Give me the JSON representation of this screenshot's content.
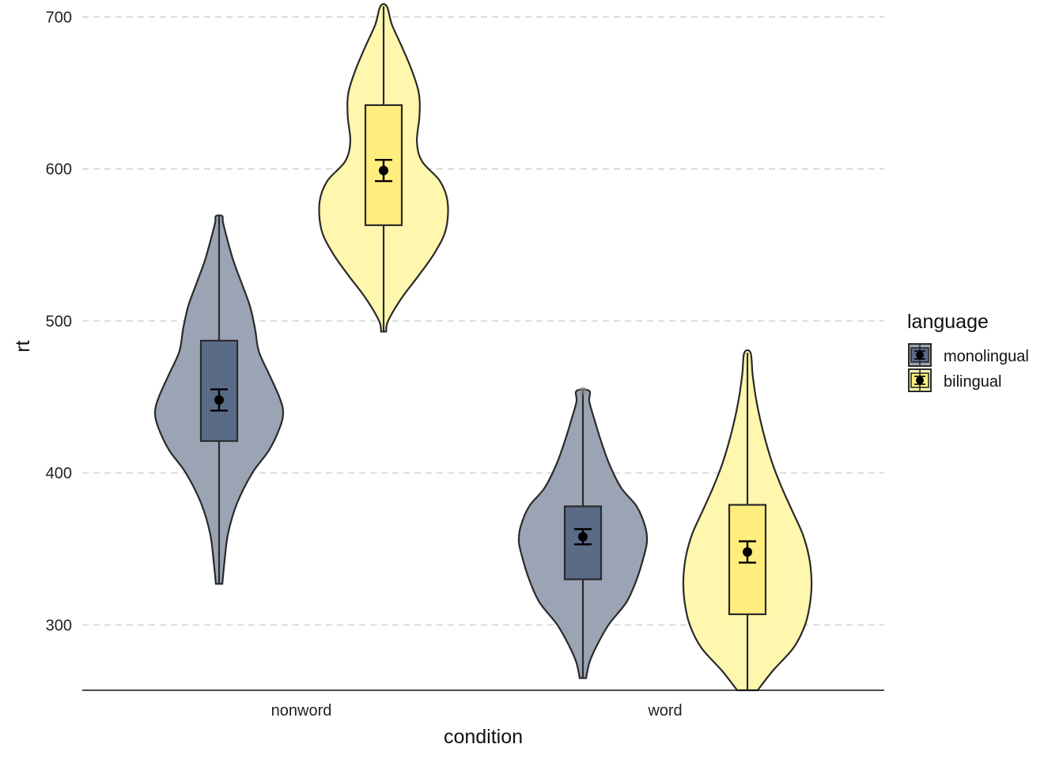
{
  "chart_data": {
    "type": "violin",
    "title": "",
    "xlabel": "condition",
    "ylabel": "rt",
    "ylim": [
      257,
      707
    ],
    "yticks": [
      300,
      400,
      500,
      600,
      700
    ],
    "grid": "horizontal-dashed",
    "categories": [
      "nonword",
      "word"
    ],
    "legend": {
      "title": "language",
      "position": "right"
    },
    "series": [
      {
        "name": "monolingual",
        "violin_color": "#9AA4B4",
        "box_color": "#5A6B88",
        "groups": [
          {
            "category": "nonword",
            "min": 327,
            "max": 569,
            "q1": 421,
            "median": 453,
            "q3": 487,
            "mean": 448,
            "ci": [
              441,
              455
            ],
            "outliers": [],
            "density": [
              [
                327,
                0.05
              ],
              [
                340,
                0.08
              ],
              [
                360,
                0.14
              ],
              [
                380,
                0.28
              ],
              [
                400,
                0.52
              ],
              [
                415,
                0.78
              ],
              [
                430,
                0.95
              ],
              [
                440,
                1.0
              ],
              [
                450,
                0.94
              ],
              [
                465,
                0.78
              ],
              [
                480,
                0.62
              ],
              [
                495,
                0.56
              ],
              [
                510,
                0.48
              ],
              [
                525,
                0.35
              ],
              [
                540,
                0.22
              ],
              [
                555,
                0.12
              ],
              [
                565,
                0.06
              ],
              [
                569,
                0.05
              ]
            ]
          },
          {
            "category": "word",
            "min": 265,
            "max": 454,
            "q1": 330,
            "median": 359,
            "q3": 378,
            "mean": 358,
            "ci": [
              353,
              363
            ],
            "outliers": [
              454
            ],
            "density": [
              [
                265,
                0.05
              ],
              [
                275,
                0.1
              ],
              [
                285,
                0.2
              ],
              [
                300,
                0.4
              ],
              [
                315,
                0.68
              ],
              [
                330,
                0.84
              ],
              [
                345,
                0.95
              ],
              [
                355,
                1.0
              ],
              [
                365,
                0.97
              ],
              [
                378,
                0.84
              ],
              [
                390,
                0.6
              ],
              [
                405,
                0.42
              ],
              [
                420,
                0.29
              ],
              [
                435,
                0.18
              ],
              [
                447,
                0.1
              ],
              [
                454,
                0.1
              ]
            ]
          }
        ]
      },
      {
        "name": "bilingual",
        "violin_color": "#FFF7AD",
        "box_color": "#FFEE7D",
        "groups": [
          {
            "category": "nonword",
            "min": 493,
            "max": 707,
            "q1": 563,
            "median": 598,
            "q3": 642,
            "mean": 599,
            "ci": [
              592,
              606
            ],
            "outliers": [],
            "density": [
              [
                493,
                0.04
              ],
              [
                500,
                0.07
              ],
              [
                515,
                0.28
              ],
              [
                530,
                0.55
              ],
              [
                545,
                0.8
              ],
              [
                560,
                0.97
              ],
              [
                578,
                1.0
              ],
              [
                592,
                0.88
              ],
              [
                605,
                0.6
              ],
              [
                618,
                0.52
              ],
              [
                635,
                0.56
              ],
              [
                650,
                0.55
              ],
              [
                665,
                0.44
              ],
              [
                680,
                0.29
              ],
              [
                695,
                0.13
              ],
              [
                707,
                0.05
              ]
            ]
          },
          {
            "category": "word",
            "min": 257,
            "max": 479,
            "q1": 307,
            "median": 345,
            "q3": 379,
            "mean": 348,
            "ci": [
              341,
              355
            ],
            "outliers": [],
            "density": [
              [
                257,
                0.16
              ],
              [
                270,
                0.4
              ],
              [
                285,
                0.72
              ],
              [
                300,
                0.9
              ],
              [
                315,
                0.98
              ],
              [
                330,
                1.0
              ],
              [
                345,
                0.96
              ],
              [
                360,
                0.86
              ],
              [
                375,
                0.7
              ],
              [
                390,
                0.54
              ],
              [
                405,
                0.4
              ],
              [
                420,
                0.29
              ],
              [
                435,
                0.2
              ],
              [
                450,
                0.13
              ],
              [
                465,
                0.08
              ],
              [
                479,
                0.05
              ]
            ]
          }
        ]
      }
    ]
  }
}
